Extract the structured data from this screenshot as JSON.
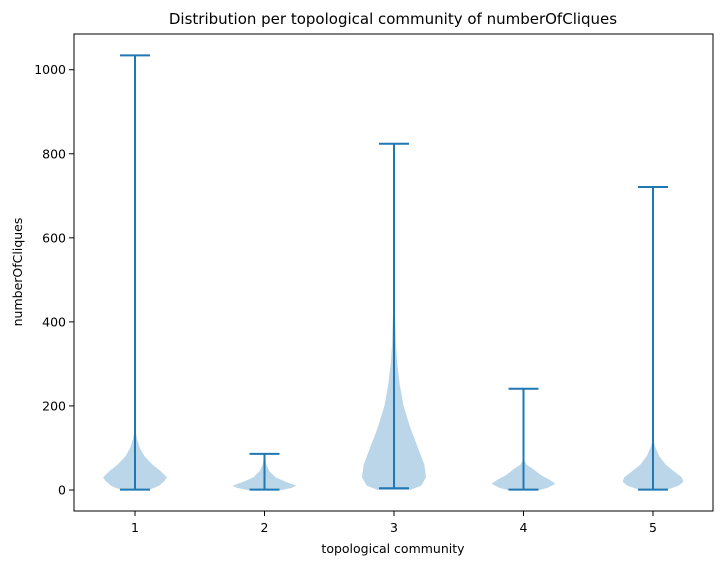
{
  "chart_data": {
    "type": "violin",
    "title": "Distribution per topological community of numberOfCliques",
    "xlabel": "topological community",
    "ylabel": "numberOfCliques",
    "categories": [
      "1",
      "2",
      "3",
      "4",
      "5"
    ],
    "ylim": [
      -50,
      1085
    ],
    "yticks": [
      0,
      200,
      400,
      600,
      800,
      1000
    ],
    "grid": false,
    "colors": {
      "body": "#1f77b4",
      "body_opacity": 0.3,
      "lines": "#1f77b4"
    },
    "series": [
      {
        "category": "1",
        "min": 1,
        "max": 1034,
        "density": [
          [
            0,
            0.4
          ],
          [
            5,
            0.6
          ],
          [
            10,
            0.75
          ],
          [
            20,
            0.9
          ],
          [
            30,
            1.0
          ],
          [
            45,
            0.8
          ],
          [
            60,
            0.55
          ],
          [
            80,
            0.3
          ],
          [
            100,
            0.15
          ],
          [
            120,
            0.07
          ],
          [
            140,
            0.02
          ]
        ]
      },
      {
        "category": "2",
        "min": 1,
        "max": 86,
        "density": [
          [
            0,
            0.55
          ],
          [
            5,
            0.85
          ],
          [
            10,
            1.0
          ],
          [
            20,
            0.65
          ],
          [
            30,
            0.35
          ],
          [
            45,
            0.15
          ],
          [
            60,
            0.06
          ],
          [
            80,
            0.01
          ]
        ]
      },
      {
        "category": "3",
        "min": 4,
        "max": 824,
        "density": [
          [
            0,
            0.5
          ],
          [
            10,
            0.85
          ],
          [
            30,
            1.0
          ],
          [
            60,
            0.95
          ],
          [
            100,
            0.75
          ],
          [
            150,
            0.5
          ],
          [
            200,
            0.3
          ],
          [
            250,
            0.18
          ],
          [
            300,
            0.1
          ],
          [
            350,
            0.06
          ],
          [
            400,
            0.04
          ],
          [
            450,
            0.02
          ],
          [
            500,
            0.01
          ]
        ]
      },
      {
        "category": "4",
        "min": 1,
        "max": 241,
        "density": [
          [
            0,
            0.5
          ],
          [
            5,
            0.75
          ],
          [
            15,
            1.0
          ],
          [
            25,
            0.8
          ],
          [
            35,
            0.55
          ],
          [
            50,
            0.3
          ],
          [
            60,
            0.1
          ],
          [
            70,
            0.02
          ]
        ]
      },
      {
        "category": "5",
        "min": 1,
        "max": 721,
        "density": [
          [
            0,
            0.4
          ],
          [
            5,
            0.6
          ],
          [
            10,
            0.8
          ],
          [
            20,
            0.95
          ],
          [
            30,
            0.9
          ],
          [
            45,
            0.65
          ],
          [
            60,
            0.4
          ],
          [
            80,
            0.2
          ],
          [
            100,
            0.08
          ],
          [
            120,
            0.01
          ]
        ]
      }
    ]
  }
}
